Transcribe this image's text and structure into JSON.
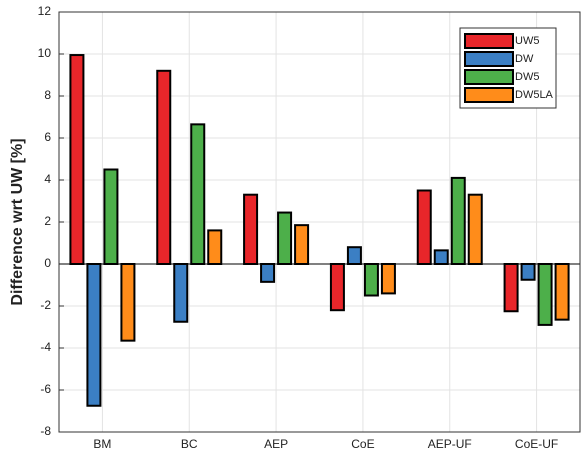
{
  "chart_data": {
    "type": "bar",
    "ylabel": "Difference wrt UW [%]",
    "categories": [
      "BM",
      "BC",
      "AEP",
      "CoE",
      "AEP-UF",
      "CoE-UF"
    ],
    "series": [
      {
        "name": "UW5",
        "color": "#e8262a",
        "values": [
          9.95,
          9.2,
          3.3,
          -2.2,
          3.5,
          -2.25
        ]
      },
      {
        "name": "DW",
        "color": "#3b7fc4",
        "values": [
          -6.75,
          -2.75,
          -0.85,
          0.8,
          0.65,
          -0.75
        ]
      },
      {
        "name": "DW5",
        "color": "#4daf4a",
        "values": [
          4.5,
          6.65,
          2.45,
          -1.5,
          4.1,
          -2.9
        ]
      },
      {
        "name": "DW5LA",
        "color": "#ff8c1a",
        "values": [
          -3.65,
          1.6,
          1.85,
          -1.4,
          3.3,
          -2.65
        ]
      }
    ],
    "ylim": [
      -8,
      12
    ],
    "yticks": [
      -8,
      -6,
      -4,
      -2,
      0,
      2,
      4,
      6,
      8,
      10,
      12
    ],
    "grid": true,
    "legend": "upper-right"
  }
}
